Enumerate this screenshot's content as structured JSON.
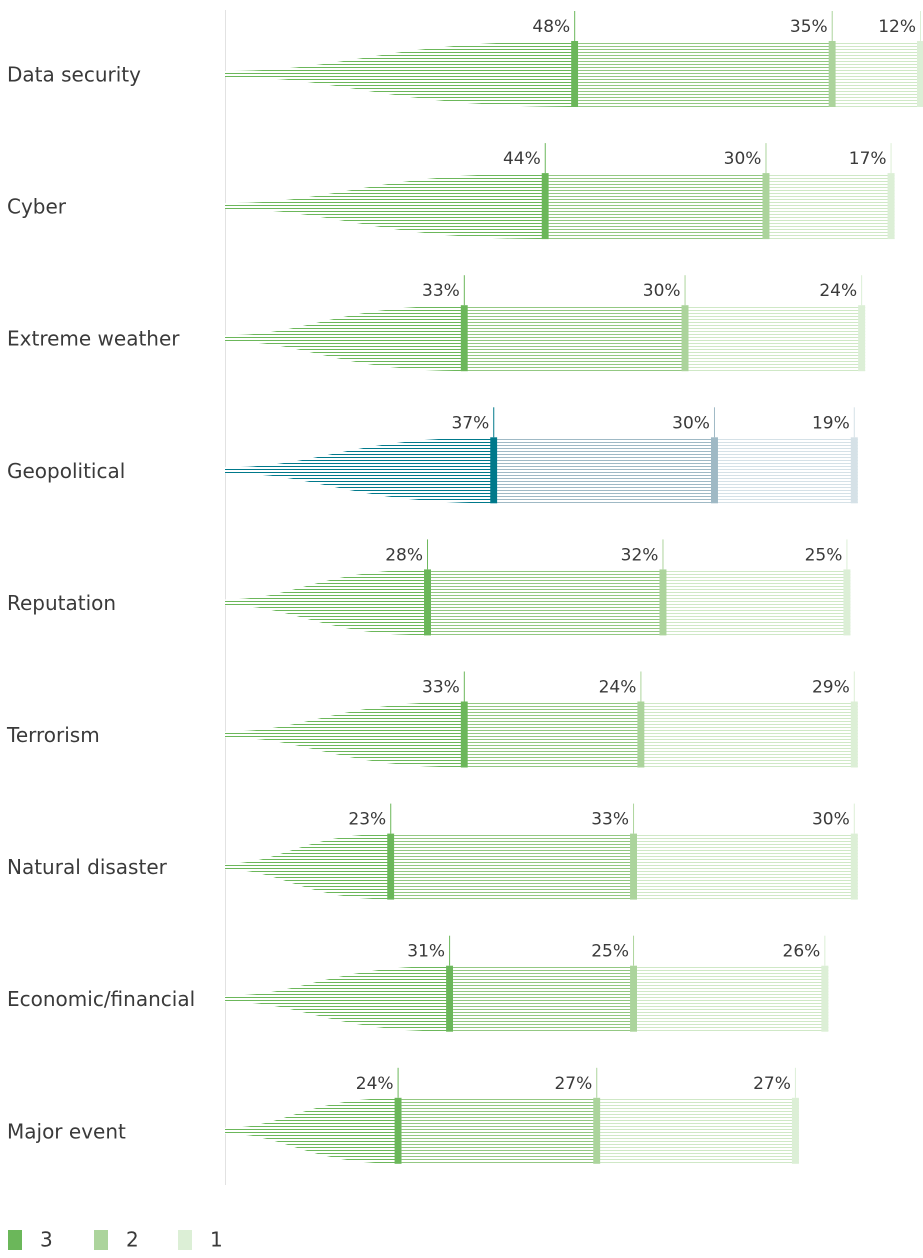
{
  "chart_data": {
    "type": "fan-stacked-bar",
    "categories": [
      "Data security",
      "Cyber",
      "Extreme weather",
      "Geopolitical",
      "Reputation",
      "Terrorism",
      "Natural disaster",
      "Economic/financial",
      "Major event"
    ],
    "series": [
      {
        "name": "3",
        "color": "#6bb75a",
        "values": [
          48,
          44,
          33,
          37,
          28,
          33,
          23,
          31,
          24
        ],
        "value_labels": [
          "48%",
          "44%",
          "33%",
          "37%",
          "28%",
          "33%",
          "23%",
          "31%",
          "24%"
        ]
      },
      {
        "name": "2",
        "color": "#acd49c",
        "values": [
          35,
          30,
          30,
          30,
          32,
          24,
          33,
          25,
          27
        ],
        "value_labels": [
          "35%",
          "30%",
          "30%",
          "30%",
          "32%",
          "24%",
          "33%",
          "25%",
          "27%"
        ]
      },
      {
        "name": "1",
        "color": "#dcefd6",
        "values": [
          12,
          17,
          24,
          19,
          25,
          29,
          30,
          26,
          27
        ],
        "value_labels": [
          "12%",
          "17%",
          "24%",
          "19%",
          "25%",
          "29%",
          "30%",
          "26%",
          "27%"
        ]
      }
    ],
    "xlim": [
      0,
      95
    ],
    "highlight": {
      "category": "Geopolitical",
      "colors": [
        "#00798b",
        "#9fb9c5",
        "#d5e1e7"
      ]
    }
  }
}
